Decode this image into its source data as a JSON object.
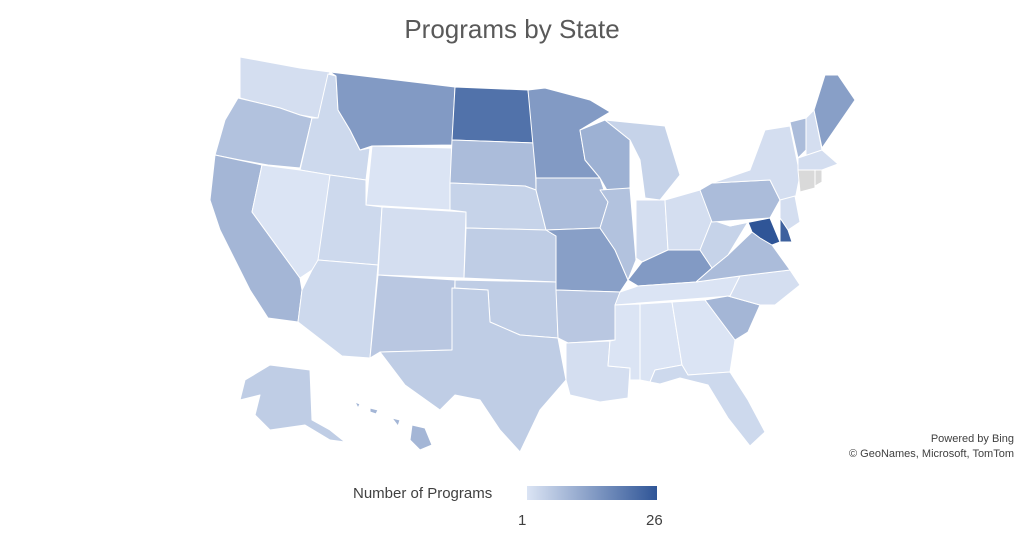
{
  "title": "Programs by State",
  "attribution": {
    "line1": "Powered by Bing",
    "line2": "© GeoNames, Microsoft, TomTom"
  },
  "legend": {
    "title": "Number of Programs",
    "min": "1",
    "max": "26",
    "color_min": "#dbe4f4",
    "color_max": "#2f5597"
  },
  "colors": {
    "no_data": "#d9d9d9",
    "border": "#ffffff",
    "title_text": "#595959"
  },
  "chart_data": {
    "type": "choropleth",
    "title": "Programs by State",
    "value_range": [
      1,
      26
    ],
    "legend_title": "Number of Programs",
    "states": [
      {
        "state": "WA",
        "value": 2
      },
      {
        "state": "OR",
        "value": 7
      },
      {
        "state": "CA",
        "value": 9
      },
      {
        "state": "ID",
        "value": 3
      },
      {
        "state": "NV",
        "value": 1
      },
      {
        "state": "MT",
        "value": 14
      },
      {
        "state": "WY",
        "value": 1
      },
      {
        "state": "UT",
        "value": 3
      },
      {
        "state": "AZ",
        "value": 3
      },
      {
        "state": "CO",
        "value": 2
      },
      {
        "state": "NM",
        "value": 6
      },
      {
        "state": "ND",
        "value": 21
      },
      {
        "state": "SD",
        "value": 8
      },
      {
        "state": "NE",
        "value": 4
      },
      {
        "state": "KS",
        "value": 5
      },
      {
        "state": "OK",
        "value": 5
      },
      {
        "state": "TX",
        "value": 5
      },
      {
        "state": "MN",
        "value": 14
      },
      {
        "state": "IA",
        "value": 8
      },
      {
        "state": "MO",
        "value": 13
      },
      {
        "state": "AR",
        "value": 6
      },
      {
        "state": "LA",
        "value": 2
      },
      {
        "state": "WI",
        "value": 10
      },
      {
        "state": "IL",
        "value": 7
      },
      {
        "state": "MI",
        "value": 4
      },
      {
        "state": "IN",
        "value": 2
      },
      {
        "state": "OH",
        "value": 2
      },
      {
        "state": "KY",
        "value": 14
      },
      {
        "state": "TN",
        "value": 1
      },
      {
        "state": "MS",
        "value": 1
      },
      {
        "state": "AL",
        "value": 1
      },
      {
        "state": "GA",
        "value": 1
      },
      {
        "state": "FL",
        "value": 3
      },
      {
        "state": "SC",
        "value": 9
      },
      {
        "state": "NC",
        "value": 2
      },
      {
        "state": "VA",
        "value": 8
      },
      {
        "state": "WV",
        "value": 4
      },
      {
        "state": "PA",
        "value": 8
      },
      {
        "state": "NY",
        "value": 2
      },
      {
        "state": "VT",
        "value": 8
      },
      {
        "state": "NH",
        "value": 2
      },
      {
        "state": "ME",
        "value": 13
      },
      {
        "state": "MA",
        "value": 2
      },
      {
        "state": "CT",
        "value": null
      },
      {
        "state": "RI",
        "value": null
      },
      {
        "state": "NJ",
        "value": 2
      },
      {
        "state": "DE",
        "value": 24
      },
      {
        "state": "MD",
        "value": 26
      },
      {
        "state": "AK",
        "value": 5
      },
      {
        "state": "HI",
        "value": 9
      }
    ]
  }
}
